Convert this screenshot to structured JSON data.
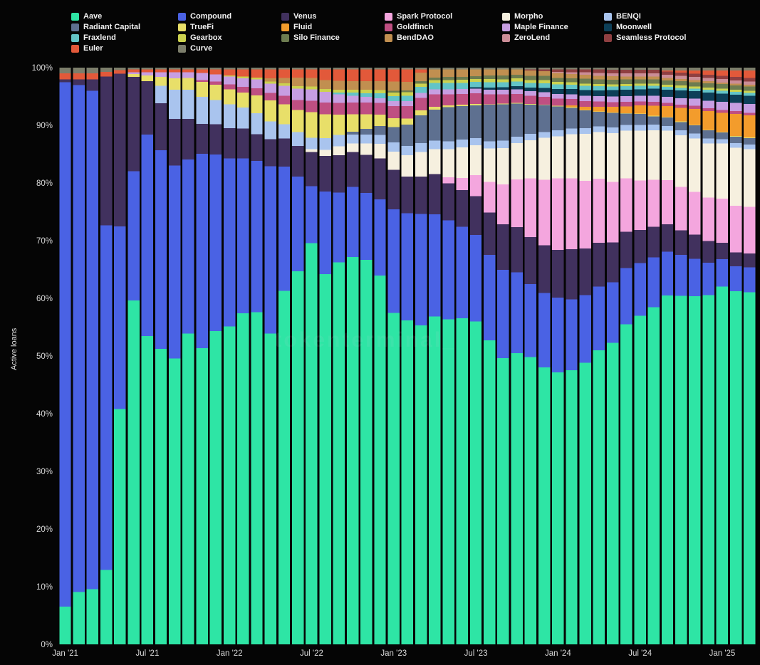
{
  "page": {
    "background": "#050505",
    "watermark": "tokenterminal_"
  },
  "chart_data": {
    "type": "bar",
    "stacked": true,
    "normalized_percent": true,
    "title": "",
    "xlabel": "",
    "ylabel": "Active loans",
    "ylim": [
      0,
      100
    ],
    "grid": false,
    "legend_position": "top",
    "y_ticks": [
      0,
      10,
      20,
      30,
      40,
      50,
      60,
      70,
      80,
      90,
      100
    ],
    "x_ticks": [
      {
        "index": 0,
        "label": "Jan '21"
      },
      {
        "index": 6,
        "label": "Jul '21"
      },
      {
        "index": 12,
        "label": "Jan '22"
      },
      {
        "index": 18,
        "label": "Jul '22"
      },
      {
        "index": 24,
        "label": "Jan '23"
      },
      {
        "index": 30,
        "label": "Jul '23"
      },
      {
        "index": 36,
        "label": "Jan '24"
      },
      {
        "index": 42,
        "label": "Jul '24"
      },
      {
        "index": 48,
        "label": "Jan '25"
      }
    ],
    "categories": [
      "2021-01",
      "2021-02",
      "2021-03",
      "2021-04",
      "2021-05",
      "2021-06",
      "2021-07",
      "2021-08",
      "2021-09",
      "2021-10",
      "2021-11",
      "2021-12",
      "2022-01",
      "2022-02",
      "2022-03",
      "2022-04",
      "2022-05",
      "2022-06",
      "2022-07",
      "2022-08",
      "2022-09",
      "2022-10",
      "2022-11",
      "2022-12",
      "2023-01",
      "2023-02",
      "2023-03",
      "2023-04",
      "2023-05",
      "2023-06",
      "2023-07",
      "2023-08",
      "2023-09",
      "2023-10",
      "2023-11",
      "2023-12",
      "2024-01",
      "2024-02",
      "2024-03",
      "2024-04",
      "2024-05",
      "2024-06",
      "2024-07",
      "2024-08",
      "2024-09",
      "2024-10",
      "2024-11",
      "2024-12",
      "2025-01",
      "2025-02",
      "2025-03"
    ],
    "series": [
      {
        "name": "Aave",
        "color": "#2ee5a5",
        "values": [
          6.5,
          9,
          9.5,
          12.5,
          40,
          58.5,
          52,
          50.5,
          49,
          53.5,
          49.5,
          51.5,
          53,
          55.5,
          56,
          52,
          62.5,
          67,
          70.5,
          62.5,
          66,
          66.5,
          66,
          63,
          54.5,
          53,
          51.5,
          53,
          52.5,
          53.5,
          54,
          50,
          47,
          48.5,
          49,
          46.5,
          45.5,
          46.5,
          48,
          50.5,
          52.5,
          57,
          59.5,
          61,
          63.5,
          64,
          65,
          64.5,
          65,
          64,
          64
        ]
      },
      {
        "name": "Compound",
        "color": "#4a62e4",
        "values": [
          90,
          87,
          86,
          58,
          31,
          22,
          34,
          34,
          33,
          30,
          32.5,
          29,
          28,
          26,
          25.5,
          28,
          22,
          17,
          10,
          14,
          12,
          12,
          11.5,
          13,
          17,
          17.5,
          18,
          16.5,
          16,
          15,
          14.5,
          14,
          14.5,
          13.5,
          12.5,
          12.5,
          12.5,
          12,
          11.5,
          11,
          10.5,
          10,
          9.5,
          9,
          8,
          7.5,
          7,
          6,
          5,
          4.5,
          4.5
        ]
      },
      {
        "name": "Venus",
        "color": "#41315e",
        "values": [
          0.5,
          1,
          2,
          25,
          26,
          16,
          9,
          8,
          8,
          7,
          5,
          5,
          5,
          5,
          4.5,
          4.5,
          5,
          5.5,
          6,
          6,
          6.5,
          6,
          6.5,
          7,
          6.5,
          6,
          6,
          6.5,
          6,
          6,
          6.5,
          7,
          7.5,
          7.5,
          8,
          8,
          8,
          8.5,
          8,
          7.5,
          7,
          6.5,
          6,
          5.5,
          5,
          4.5,
          4.5,
          4,
          3,
          2.5,
          2.5
        ]
      },
      {
        "name": "Spark Protocol",
        "color": "#f4a6de",
        "values": [
          0,
          0,
          0,
          0,
          0,
          0,
          0,
          0,
          0,
          0,
          0,
          0,
          0,
          0,
          0,
          0,
          0,
          0,
          0,
          0,
          0,
          0,
          0,
          0,
          0,
          0,
          0,
          0,
          1,
          2,
          3.5,
          5,
          6.5,
          8,
          10,
          11,
          12,
          12,
          11.5,
          11,
          10.5,
          9.5,
          9,
          8.5,
          8,
          8,
          8,
          8,
          8,
          8.5,
          8.5
        ]
      },
      {
        "name": "Morpho",
        "color": "#f6f0df",
        "values": [
          0,
          0,
          0,
          0,
          0,
          0,
          0,
          0,
          0,
          0,
          0,
          0,
          0,
          0,
          0,
          0,
          0,
          0,
          0.5,
          1,
          1.5,
          1.5,
          2,
          2.5,
          3,
          3.5,
          4,
          4,
          4.5,
          5,
          5,
          5.5,
          6,
          6,
          6.5,
          7,
          7,
          7.5,
          8,
          8,
          8.5,
          8.5,
          9,
          9,
          9,
          9.5,
          10,
          10,
          10,
          10.5,
          10.5
        ]
      },
      {
        "name": "BENQI",
        "color": "#a9c4ee",
        "values": [
          0,
          0,
          0,
          0,
          0,
          0,
          0,
          3,
          5,
          5,
          4.5,
          4,
          4,
          3.5,
          3.5,
          3,
          2.5,
          2.5,
          2,
          2,
          2,
          1.5,
          1.5,
          1.5,
          1.5,
          1.5,
          1.4,
          1.4,
          1.3,
          1.3,
          1.2,
          1.2,
          1.2,
          1.1,
          1.1,
          1,
          1,
          1,
          1,
          1,
          1,
          1,
          1,
          1,
          0.9,
          0.9,
          0.9,
          0.9,
          0.8,
          0.8,
          0.8
        ]
      },
      {
        "name": "Radiant Capital",
        "color": "#5e7090",
        "values": [
          0,
          0,
          0,
          0,
          0,
          0,
          0,
          0,
          0,
          0,
          0,
          0,
          0,
          0,
          0,
          0,
          0,
          0,
          0,
          0,
          0,
          0.5,
          1,
          1.5,
          2.5,
          3.5,
          4.5,
          5,
          5.5,
          5.5,
          5.5,
          6,
          6,
          5.5,
          5,
          4.5,
          4,
          3.5,
          3,
          2.5,
          2.5,
          2,
          2,
          1.5,
          1.5,
          1.5,
          1.5,
          1.5,
          1.2,
          1.2,
          1.2
        ]
      },
      {
        "name": "TrueFi",
        "color": "#e8df69",
        "values": [
          0,
          0,
          0,
          0,
          0,
          0.5,
          1,
          1.5,
          2,
          2,
          2.5,
          2.5,
          2.5,
          2.5,
          3,
          3.5,
          3.5,
          4,
          4.5,
          4,
          3.5,
          3,
          2.5,
          2,
          1.5,
          1,
          0.8,
          0.5,
          0.3,
          0.2,
          0.2,
          0.1,
          0.1,
          0.1,
          0.1,
          0.1,
          0.1,
          0.1,
          0.1,
          0.1,
          0.1,
          0.1,
          0.1,
          0.1,
          0.1,
          0.1,
          0.1,
          0.1,
          0.1,
          0.1,
          0.1
        ]
      },
      {
        "name": "Fluid",
        "color": "#f39c2c",
        "values": [
          0,
          0,
          0,
          0,
          0,
          0,
          0,
          0,
          0,
          0,
          0,
          0,
          0,
          0,
          0,
          0,
          0,
          0,
          0,
          0,
          0,
          0,
          0,
          0,
          0,
          0,
          0,
          0,
          0,
          0,
          0,
          0,
          0,
          0,
          0,
          0,
          0,
          0.3,
          0.5,
          0.8,
          1,
          1.2,
          1.5,
          1.8,
          2,
          2.5,
          3,
          3.5,
          3.5,
          4,
          4
        ]
      },
      {
        "name": "Goldfinch",
        "color": "#bf4f82",
        "values": [
          0,
          0,
          0,
          0,
          0,
          0,
          0,
          0,
          0,
          0,
          0.3,
          0.5,
          0.8,
          1,
          1.2,
          1.3,
          1.5,
          1.8,
          2,
          2,
          2,
          2,
          2,
          2,
          2,
          2,
          2,
          2,
          1.8,
          1.8,
          1.8,
          1.6,
          1.5,
          1.5,
          1.4,
          1.3,
          1.2,
          1.1,
          1,
          0.9,
          0.8,
          0.8,
          0.7,
          0.7,
          0.6,
          0.6,
          0.6,
          0.5,
          0.5,
          0.5,
          0.5
        ]
      },
      {
        "name": "Maple Finance",
        "color": "#c79ee2",
        "values": [
          0,
          0,
          0,
          0,
          0,
          0.3,
          0.5,
          0.8,
          1,
          1,
          1.2,
          1.2,
          1.3,
          1.4,
          1.5,
          1.5,
          1.8,
          2,
          2,
          1.8,
          1.5,
          1.2,
          1,
          0.8,
          0.8,
          0.8,
          0.8,
          0.8,
          0.8,
          0.8,
          0.8,
          0.8,
          0.8,
          0.8,
          0.8,
          0.8,
          0.8,
          0.8,
          0.9,
          0.9,
          1,
          1,
          1,
          1.1,
          1.1,
          1.2,
          1.3,
          1.4,
          1.5,
          1.5,
          1.6
        ]
      },
      {
        "name": "Moonwell",
        "color": "#0d3f58",
        "values": [
          0,
          0,
          0,
          0,
          0,
          0,
          0,
          0,
          0,
          0,
          0,
          0,
          0,
          0,
          0,
          0,
          0,
          0,
          0,
          0,
          0,
          0,
          0,
          0,
          0,
          0,
          0,
          0,
          0,
          0,
          0.2,
          0.3,
          0.4,
          0.5,
          0.6,
          0.7,
          0.8,
          0.9,
          1,
          1,
          1.1,
          1.2,
          1.2,
          1.3,
          1.3,
          1.4,
          1.4,
          1.5,
          1.5,
          1.5,
          1.5
        ]
      },
      {
        "name": "Fraxlend",
        "color": "#63c4c7",
        "values": [
          0,
          0,
          0,
          0,
          0,
          0,
          0,
          0,
          0,
          0,
          0,
          0,
          0,
          0,
          0,
          0,
          0,
          0,
          0,
          0,
          0.3,
          0.5,
          0.6,
          0.8,
          0.8,
          0.9,
          1,
          1,
          1,
          1,
          0.9,
          0.9,
          0.8,
          0.8,
          0.8,
          0.8,
          0.8,
          0.7,
          0.7,
          0.7,
          0.6,
          0.6,
          0.6,
          0.5,
          0.5,
          0.5,
          0.5,
          0.5,
          0.5,
          0.5,
          0.5
        ]
      },
      {
        "name": "Gearbox",
        "color": "#ccd24f",
        "values": [
          0,
          0,
          0,
          0,
          0,
          0,
          0,
          0,
          0,
          0,
          0,
          0,
          0.2,
          0.3,
          0.3,
          0.4,
          0.4,
          0.5,
          0.5,
          0.5,
          0.5,
          0.5,
          0.6,
          0.6,
          0.6,
          0.6,
          0.5,
          0.5,
          0.5,
          0.5,
          0.5,
          0.5,
          0.5,
          0.5,
          0.5,
          0.5,
          0.4,
          0.4,
          0.4,
          0.4,
          0.4,
          0.4,
          0.4,
          0.4,
          0.4,
          0.4,
          0.4,
          0.4,
          0.4,
          0.4,
          0.4
        ]
      },
      {
        "name": "Silo Finance",
        "color": "#6d7c50",
        "values": [
          0,
          0,
          0,
          0,
          0,
          0,
          0,
          0,
          0,
          0,
          0,
          0,
          0,
          0,
          0,
          0,
          0,
          0,
          0,
          0,
          0,
          0,
          0,
          0,
          0.3,
          0.3,
          0.4,
          0.4,
          0.5,
          0.5,
          0.5,
          0.6,
          0.6,
          0.6,
          0.7,
          0.7,
          0.7,
          0.7,
          0.8,
          0.8,
          0.8,
          0.8,
          0.8,
          0.8,
          0.8,
          0.8,
          0.8,
          0.8,
          0.8,
          0.8,
          0.8
        ]
      },
      {
        "name": "BendDAO",
        "color": "#c18f50",
        "values": [
          0,
          0,
          0,
          0,
          0,
          0,
          0,
          0,
          0,
          0,
          0,
          0,
          0,
          0,
          0,
          0.5,
          1,
          1.5,
          1.5,
          1.5,
          1.5,
          1.5,
          1.5,
          1.5,
          1.5,
          1.4,
          1.4,
          1.3,
          1.2,
          1.2,
          1.1,
          1,
          1,
          0.9,
          0.9,
          0.8,
          0.8,
          0.7,
          0.7,
          0.6,
          0.6,
          0.5,
          0.5,
          0.5,
          0.4,
          0.4,
          0.4,
          0.4,
          0.3,
          0.3,
          0.3
        ]
      },
      {
        "name": "ZeroLend",
        "color": "#cb8d97",
        "values": [
          0,
          0,
          0,
          0,
          0,
          0,
          0,
          0,
          0,
          0,
          0,
          0,
          0,
          0,
          0,
          0,
          0,
          0,
          0,
          0,
          0,
          0,
          0,
          0,
          0,
          0,
          0,
          0,
          0,
          0,
          0,
          0,
          0,
          0,
          0,
          0,
          0.2,
          0.3,
          0.4,
          0.5,
          0.5,
          0.6,
          0.6,
          0.6,
          0.6,
          0.6,
          0.6,
          0.6,
          0.6,
          0.6,
          0.6
        ]
      },
      {
        "name": "Seamless Protocol",
        "color": "#8f3f41",
        "values": [
          0,
          0,
          0,
          0,
          0,
          0,
          0,
          0,
          0,
          0,
          0,
          0,
          0,
          0,
          0,
          0,
          0,
          0,
          0,
          0,
          0,
          0,
          0,
          0,
          0,
          0,
          0,
          0,
          0,
          0,
          0,
          0,
          0,
          0,
          0.2,
          0.3,
          0.4,
          0.5,
          0.5,
          0.6,
          0.6,
          0.6,
          0.6,
          0.6,
          0.6,
          0.6,
          0.6,
          0.6,
          0.6,
          0.6,
          0.6
        ]
      },
      {
        "name": "Euler",
        "color": "#e2593a",
        "values": [
          1,
          1,
          1,
          0.8,
          0.6,
          0.5,
          0.5,
          0.5,
          0.5,
          0.5,
          0.6,
          0.8,
          1,
          1.2,
          1.4,
          1.5,
          1.5,
          1.5,
          1.5,
          1.8,
          2,
          2,
          2,
          2,
          2,
          2,
          0.5,
          0,
          0,
          0,
          0,
          0,
          0,
          0,
          0,
          0,
          0,
          0,
          0,
          0,
          0,
          0,
          0,
          0,
          0.2,
          0.4,
          0.6,
          0.8,
          1,
          1.2,
          1.4
        ]
      },
      {
        "name": "Curve",
        "color": "#7c7e6b",
        "values": [
          1,
          1,
          1,
          0.7,
          0.4,
          0.3,
          0.3,
          0.3,
          0.3,
          0.3,
          0.3,
          0.3,
          0.3,
          0.3,
          0.3,
          0.3,
          0.3,
          0.3,
          0.3,
          0.3,
          0.3,
          0.3,
          0.3,
          0.3,
          0.3,
          0.3,
          0.3,
          0.3,
          0.3,
          0.3,
          0.3,
          0.3,
          0.3,
          0.3,
          0.3,
          0.3,
          0.3,
          0.3,
          0.3,
          0.3,
          0.4,
          0.4,
          0.4,
          0.4,
          0.5,
          0.5,
          0.5,
          0.5,
          0.5,
          0.5,
          0.5
        ]
      }
    ]
  }
}
